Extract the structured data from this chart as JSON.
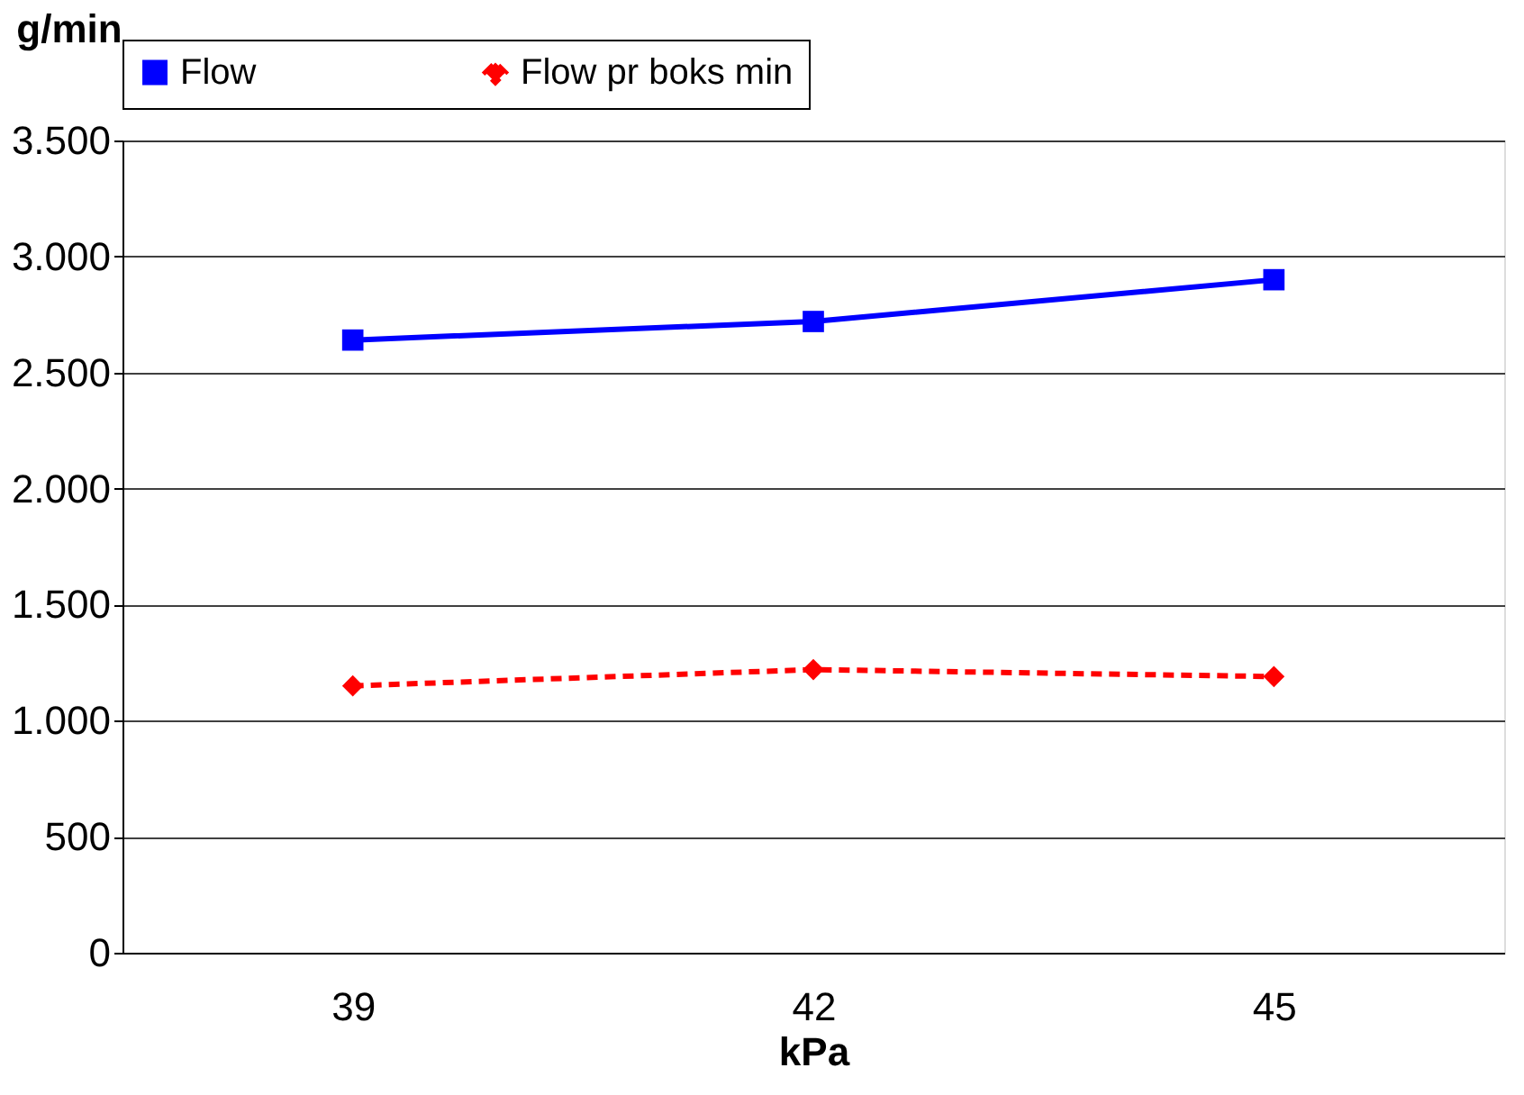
{
  "chart_data": {
    "type": "line",
    "ylabel": "g/min",
    "xlabel": "kPa",
    "categories": [
      "39",
      "42",
      "45"
    ],
    "series": [
      {
        "name": "Flow",
        "color": "#0000ff",
        "values": [
          2640,
          2720,
          2900
        ],
        "marker": "square",
        "line_style": "solid"
      },
      {
        "name": "Flow pr boks min",
        "color": "#ff0000",
        "values": [
          1150,
          1220,
          1190
        ],
        "marker": "diamond",
        "line_style": "dashed"
      }
    ],
    "ylim": [
      0,
      3500
    ],
    "yticks": [
      0,
      500,
      {
        "value": 1000,
        "label": "1.000"
      },
      {
        "value": 1500,
        "label": "1.500"
      },
      {
        "value": 2000,
        "label": "2.000"
      },
      {
        "value": 2500,
        "label": "2.500"
      },
      {
        "value": 3000,
        "label": "3.000"
      },
      {
        "value": 3500,
        "label": "3.500"
      }
    ],
    "grid": "y",
    "legend": "top"
  }
}
